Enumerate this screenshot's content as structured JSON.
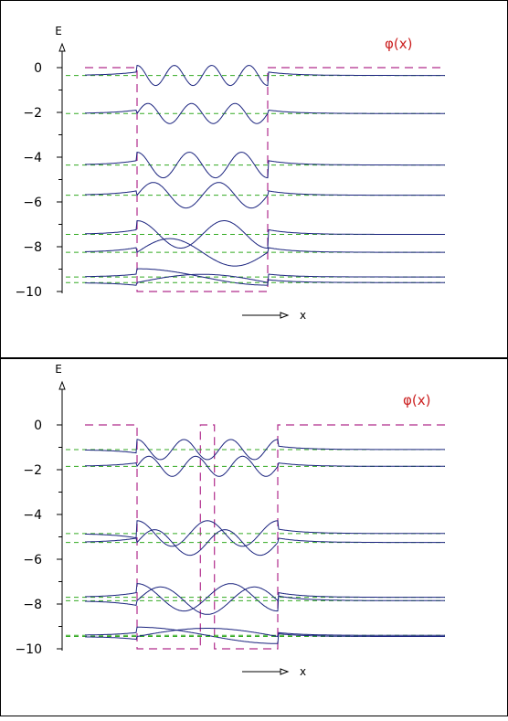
{
  "chart_data": [
    {
      "type": "line",
      "ylabel": "E",
      "xlabel": "x",
      "legend_label": "φ(x)",
      "yticks": [
        "0",
        "−2",
        "−4",
        "−6",
        "−8",
        "−10"
      ],
      "ylim": [
        -10,
        0
      ],
      "colors": {
        "well": "#b02c8c",
        "levels": "#33aa22",
        "wavefunctions": "#1a237e",
        "label": "#cc2222"
      },
      "potential": {
        "depth": -10,
        "wells": [
          {
            "x": [
              0.0,
              0.49
            ]
          },
          {
            "x": [
              0.51,
              1.0
            ]
          }
        ],
        "barrier_height": -10
      },
      "levels": [
        {
          "E": -0.35,
          "nodes": 6,
          "parity": "odd"
        },
        {
          "E": -2.05,
          "nodes": 5,
          "parity": "even"
        },
        {
          "E": -4.35,
          "nodes": 4,
          "parity": "odd"
        },
        {
          "E": -5.7,
          "nodes": 3,
          "parity": "even"
        },
        {
          "E": -7.45,
          "nodes": 2,
          "parity": "odd"
        },
        {
          "E": -8.25,
          "nodes": 1,
          "parity": "even"
        },
        {
          "E": -9.35,
          "nodes": 0,
          "parity": "odd"
        },
        {
          "E": -9.6,
          "nodes": 0,
          "parity": "even"
        }
      ]
    },
    {
      "type": "line",
      "ylabel": "E",
      "xlabel": "x",
      "legend_label": "φ(x)",
      "yticks": [
        "0",
        "−2",
        "−4",
        "−6",
        "−8",
        "−10"
      ],
      "ylim": [
        -10,
        0
      ],
      "colors": {
        "well": "#b02c8c",
        "levels": "#33aa22",
        "wavefunctions": "#1a237e",
        "label": "#cc2222"
      },
      "potential": {
        "depth": -10,
        "wells": [
          {
            "x": [
              0.0,
              0.45
            ]
          },
          {
            "x": [
              0.55,
              1.0
            ]
          }
        ],
        "barrier_height": 0
      },
      "levels": [
        {
          "E": -1.1,
          "nodes": 5,
          "parity": "odd"
        },
        {
          "E": -1.85,
          "nodes": 5,
          "parity": "even"
        },
        {
          "E": -4.85,
          "nodes": 3,
          "parity": "odd"
        },
        {
          "E": -5.25,
          "nodes": 3,
          "parity": "even"
        },
        {
          "E": -7.7,
          "nodes": 2,
          "parity": "odd"
        },
        {
          "E": -7.85,
          "nodes": 2,
          "parity": "even"
        },
        {
          "E": -9.4,
          "nodes": 0,
          "parity": "odd"
        },
        {
          "E": -9.45,
          "nodes": 0,
          "parity": "even"
        }
      ]
    }
  ]
}
